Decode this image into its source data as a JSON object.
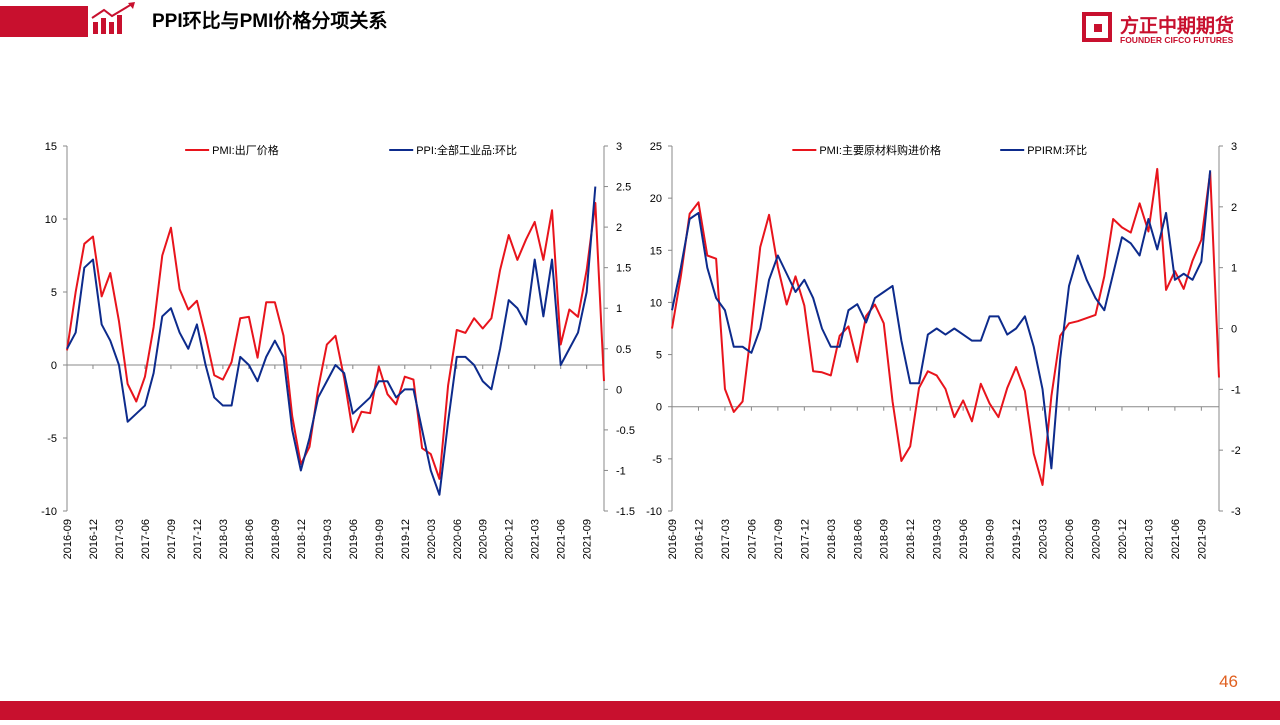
{
  "header": {
    "title": "PPI环比与PMI价格分项关系",
    "logo_cn": "方正中期期货",
    "logo_en": "FOUNDER CIFCO FUTURES"
  },
  "page_number": "46",
  "chart_data": [
    {
      "type": "line",
      "categories": [
        "2016-09",
        null,
        null,
        "2016-12",
        null,
        null,
        "2017-03",
        null,
        null,
        "2017-06",
        null,
        null,
        "2017-09",
        null,
        null,
        "2017-12",
        null,
        null,
        "2018-03",
        null,
        null,
        "2018-06",
        null,
        null,
        "2018-09",
        null,
        null,
        "2018-12",
        null,
        null,
        "2019-03",
        null,
        null,
        "2019-06",
        null,
        null,
        "2019-09",
        null,
        null,
        "2019-12",
        null,
        null,
        "2020-03",
        null,
        null,
        "2020-06",
        null,
        null,
        "2020-09",
        null,
        null,
        "2020-12",
        null,
        null,
        "2021-03",
        null,
        null,
        "2021-06",
        null,
        null,
        "2021-09",
        null,
        null
      ],
      "series": [
        {
          "name": "PMI:出厂价格",
          "color": "#e8141c",
          "axis": "y",
          "values": [
            1,
            5,
            8.3,
            8.8,
            4.7,
            6.3,
            3,
            -1.3,
            -2.5,
            -0.8,
            2.6,
            7.5,
            9.4,
            5.2,
            3.8,
            4.4,
            2,
            -0.7,
            -1,
            0.2,
            3.2,
            3.3,
            0.5,
            4.3,
            4.3,
            2,
            -3.5,
            -6.8,
            -5.6,
            -1.6,
            1.4,
            2,
            -0.9,
            -4.6,
            -3.2,
            -3.3,
            -0.1,
            -2,
            -2.7,
            -0.8,
            -1,
            -5.7,
            -6.1,
            -7.8,
            -1.4,
            2.4,
            2.2,
            3.2,
            2.5,
            3.2,
            6.5,
            8.9,
            7.2,
            8.6,
            9.8,
            7.2,
            10.6,
            1.4,
            3.8,
            3.3,
            6.5,
            11.1,
            -1.1
          ]
        },
        {
          "name": "PPI:全部工业品:环比",
          "color": "#0d2b8c",
          "axis": "y2",
          "values": [
            0.5,
            0.7,
            1.5,
            1.6,
            0.8,
            0.6,
            0.3,
            -0.4,
            -0.3,
            -0.2,
            0.2,
            0.9,
            1.0,
            0.7,
            0.5,
            0.8,
            0.3,
            -0.1,
            -0.2,
            -0.2,
            0.4,
            0.3,
            0.1,
            0.4,
            0.6,
            0.4,
            -0.5,
            -1.0,
            -0.6,
            -0.1,
            0.1,
            0.3,
            0.2,
            -0.3,
            -0.2,
            -0.1,
            0.1,
            0.1,
            -0.1,
            0,
            0,
            -0.5,
            -1.0,
            -1.3,
            -0.4,
            0.4,
            0.4,
            0.3,
            0.1,
            0,
            0.5,
            1.1,
            1.0,
            0.8,
            1.6,
            0.9,
            1.6,
            0.3,
            0.5,
            0.7,
            1.2,
            2.5,
            null
          ]
        }
      ],
      "ylim": [
        -10,
        15
      ],
      "yticks": [
        -10,
        -5,
        0,
        5,
        10,
        15
      ],
      "y2lim": [
        -1.5,
        3
      ],
      "y2ticks": [
        -1.5,
        -1,
        -0.5,
        0,
        0.5,
        1,
        1.5,
        2,
        2.5,
        3
      ],
      "legend": "top"
    },
    {
      "type": "line",
      "categories": [
        "2016-09",
        null,
        null,
        "2016-12",
        null,
        null,
        "2017-03",
        null,
        null,
        "2017-06",
        null,
        null,
        "2017-09",
        null,
        null,
        "2017-12",
        null,
        null,
        "2018-03",
        null,
        null,
        "2018-06",
        null,
        null,
        "2018-09",
        null,
        null,
        "2018-12",
        null,
        null,
        "2019-03",
        null,
        null,
        "2019-06",
        null,
        null,
        "2019-09",
        null,
        null,
        "2019-12",
        null,
        null,
        "2020-03",
        null,
        null,
        "2020-06",
        null,
        null,
        "2020-09",
        null,
        null,
        "2020-12",
        null,
        null,
        "2021-03",
        null,
        null,
        "2021-06",
        null,
        null,
        "2021-09",
        null,
        null
      ],
      "series": [
        {
          "name": "PMI:主要原材料购进价格",
          "color": "#e8141c",
          "axis": "y",
          "values": [
            7.5,
            12.5,
            18.5,
            19.6,
            14.5,
            14.2,
            1.7,
            -0.5,
            0.5,
            7.5,
            15.3,
            18.4,
            13.4,
            9.8,
            12.5,
            9.7,
            3.4,
            3.3,
            3,
            6.8,
            7.7,
            4.3,
            8.7,
            9.8,
            8,
            0.5,
            -5.2,
            -3.8,
            1.8,
            3.4,
            3,
            1.7,
            -1,
            0.6,
            -1.4,
            2.2,
            0.3,
            -1,
            1.8,
            3.8,
            1.5,
            -4.5,
            -7.5,
            1,
            6.8,
            8,
            8.2,
            8.5,
            8.8,
            12.5,
            18,
            17.2,
            16.7,
            19.5,
            16.8,
            22.8,
            11.2,
            13,
            11.3,
            14,
            16,
            22.5,
            2.8
          ]
        },
        {
          "name": "PPIRM:环比",
          "color": "#0d2b8c",
          "axis": "y2",
          "values": [
            0.3,
            1,
            1.8,
            1.9,
            1,
            0.5,
            0.3,
            -0.3,
            -0.3,
            -0.4,
            0,
            0.8,
            1.2,
            0.9,
            0.6,
            0.8,
            0.5,
            0,
            -0.3,
            -0.3,
            0.3,
            0.4,
            0.1,
            0.5,
            0.6,
            0.7,
            -0.2,
            -0.9,
            -0.9,
            -0.1,
            0,
            -0.1,
            0,
            -0.1,
            -0.2,
            -0.2,
            0.2,
            0.2,
            -0.1,
            0,
            0.2,
            -0.3,
            -1.0,
            -2.3,
            -0.5,
            0.7,
            1.2,
            0.8,
            0.5,
            0.3,
            0.9,
            1.5,
            1.4,
            1.2,
            1.8,
            1.3,
            1.9,
            0.8,
            0.9,
            0.8,
            1.1,
            2.6,
            null
          ]
        }
      ],
      "ylim": [
        -10,
        25
      ],
      "yticks": [
        -10,
        -5,
        0,
        5,
        10,
        15,
        20,
        25
      ],
      "y2lim": [
        -3,
        3
      ],
      "y2ticks": [
        -3,
        -2,
        -1,
        0,
        1,
        2,
        3
      ],
      "legend": "top"
    }
  ]
}
